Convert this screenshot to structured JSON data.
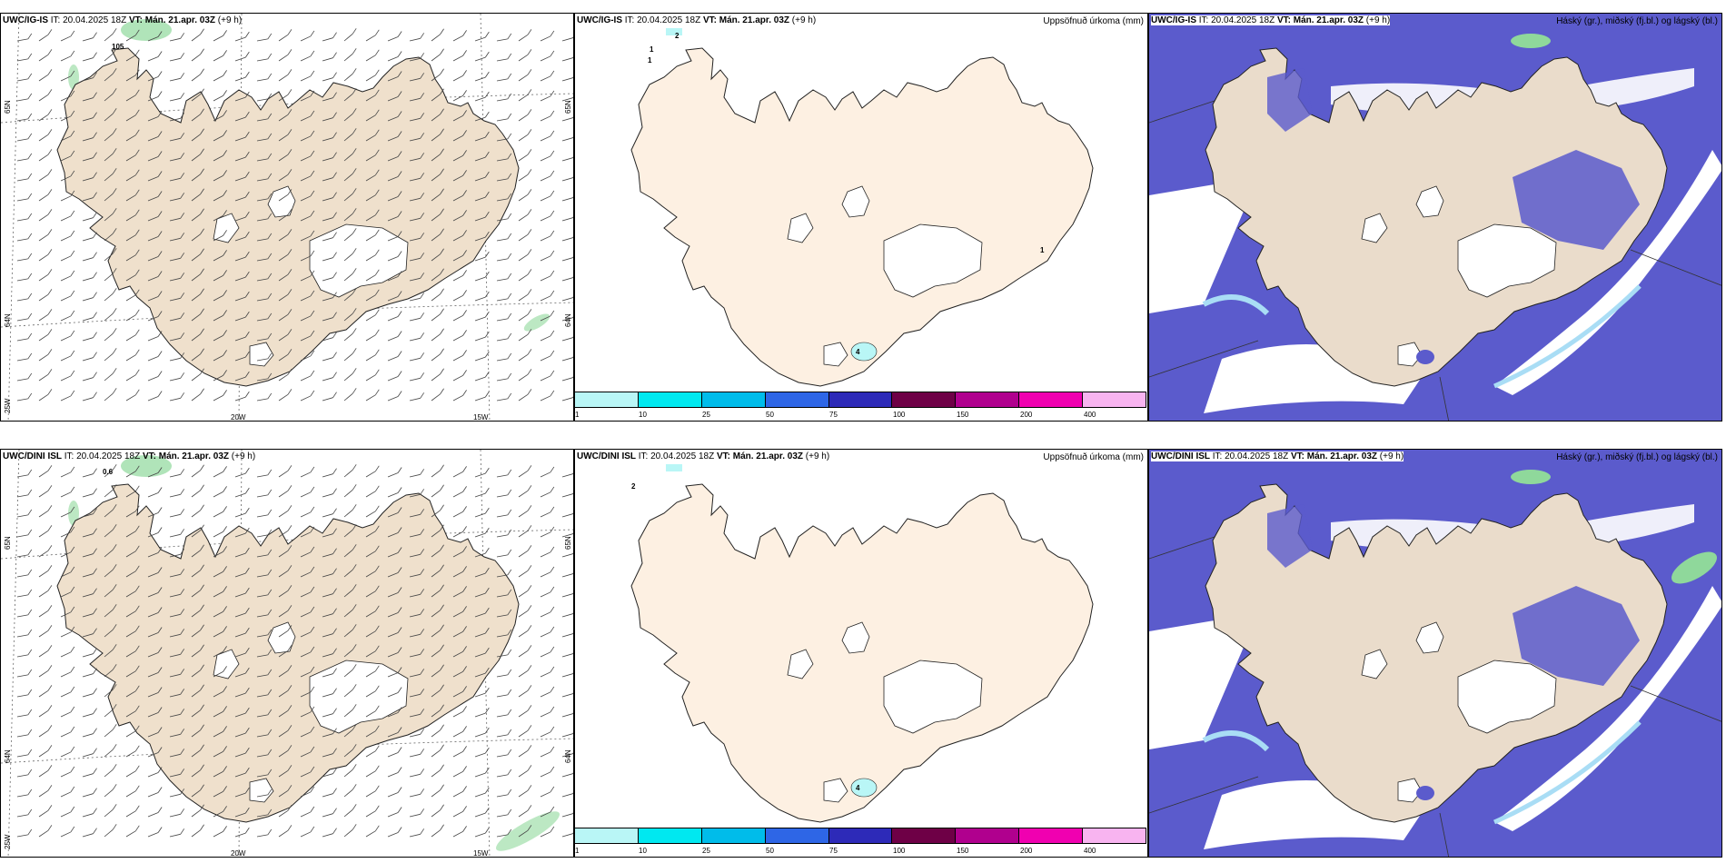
{
  "rows": [
    {
      "model": "UWC/IG-IS",
      "it_label": "IT:",
      "it_value": "20.04.2025 18Z",
      "vt_label": "VT:",
      "vt_value": "Mán. 21.apr. 03Z",
      "lead": "(+9 h)",
      "precip_title": "Uppsöfnuð úrkoma (mm)",
      "cloud_title": "Háský (gr.), miðský (fj.bl.) og lágský (bl.)",
      "wind_marker": "105",
      "precip_values": [
        "2",
        "1",
        "1",
        "1",
        "4"
      ]
    },
    {
      "model": "UWC/DINI ISL",
      "it_label": "IT:",
      "it_value": "20.04.2025 18Z",
      "vt_label": "VT:",
      "vt_value": "Mán. 21.apr. 03Z",
      "lead": "(+9 h)",
      "precip_title": "Uppsöfnuð úrkoma (mm)",
      "cloud_title": "Háský (gr.), miðský (fj.bl.) og lágský (bl.)",
      "wind_marker": "0.6",
      "precip_values": [
        "2",
        "4"
      ]
    }
  ],
  "axes": {
    "lat_65": "65N",
    "lat_64": "64N",
    "lon_20": "20W",
    "lon_15": "15W",
    "lon_25": "25W"
  },
  "colorbar": {
    "labels": [
      "1",
      "10",
      "25",
      "50",
      "75",
      "100",
      "150",
      "200",
      "400"
    ],
    "colors": [
      "#b9f6f6",
      "#00e8f0",
      "#00bcea",
      "#2e66e6",
      "#2d2ab8",
      "#6e0046",
      "#b0008e",
      "#f000b0",
      "#f8b4f0"
    ]
  },
  "colors": {
    "land_wind": "#efe0cc",
    "land_precip": "#fdf0e2",
    "land_cloud": "#eadccb",
    "ocean_cloud": "#5b5bcc",
    "cloud_light": "#a9ddf5",
    "cloud_green": "#8fd89b"
  }
}
